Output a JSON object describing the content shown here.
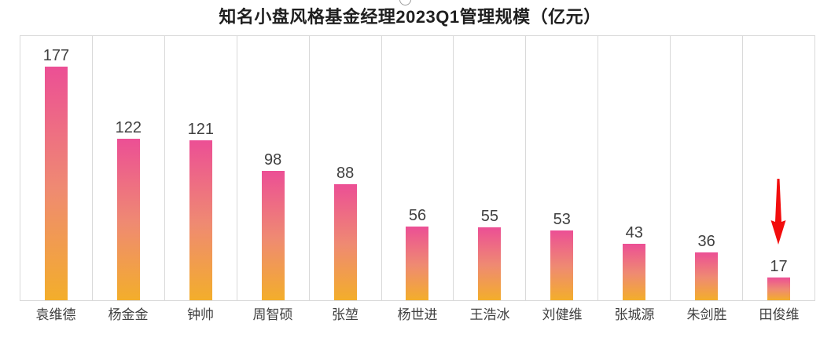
{
  "title": "知名小盘风格基金经理2023Q1管理规模（亿元）",
  "chart_data": {
    "type": "bar",
    "title": "知名小盘风格基金经理2023Q1管理规模（亿元）",
    "categories": [
      "袁维德",
      "杨金金",
      "钟帅",
      "周智硕",
      "张堃",
      "杨世进",
      "王浩冰",
      "刘健维",
      "张城源",
      "朱剑胜",
      "田俊维"
    ],
    "values": [
      177,
      122,
      121,
      98,
      88,
      56,
      55,
      53,
      43,
      36,
      17
    ],
    "xlabel": "",
    "ylabel": "",
    "ylim": [
      0,
      200
    ],
    "grid": "vertical category gridlines with full plot border, no y-axis labels",
    "legend": "none",
    "data_labels": "above each bar",
    "colors": {
      "bar_gradient_top": "#ec4f95",
      "bar_gradient_middle": "#ef8a72",
      "bar_gradient_bottom": "#f3ae2b",
      "grid_line": "#d9d9d9",
      "value_label": "#404040",
      "category_label": "#404040",
      "title": "#1f1f1f",
      "annotation_arrow": "#f20d0d"
    },
    "annotation": {
      "type": "down-arrow",
      "target_category": "田俊维",
      "target_index": 10,
      "meaning": "red arrow pointing down at the smallest bar (17)"
    }
  }
}
